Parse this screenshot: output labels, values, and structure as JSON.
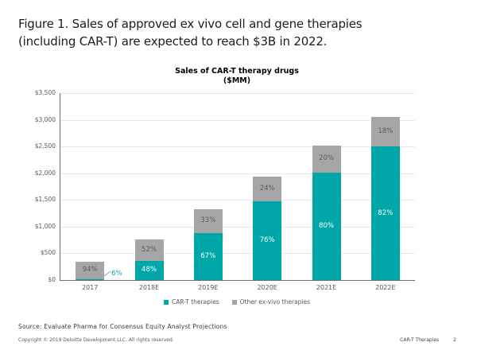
{
  "slide": {
    "title_line1": "Figure 1. Sales of approved ex vivo cell and gene therapies",
    "title_line2": "(including CAR-T) are expected to reach $3B in 2022.",
    "source_note": "Source: Evaluate Pharma for Consensus Equity Analyst Projections",
    "copyright": "Copyright © 2019 Deloitte Development LLC. All rights reserved.",
    "footer_label": "CAR-T Therapies",
    "page_number": "2"
  },
  "chart_data": {
    "type": "bar",
    "stacked": true,
    "title": "Sales of CAR-T therapy drugs",
    "subtitle": "($MM)",
    "categories": [
      "2017",
      "2018E",
      "2019E",
      "2020E",
      "2021E",
      "2022E"
    ],
    "series": [
      {
        "name": "CAR-T therapies",
        "color": "#00A7A9",
        "label_color": "#FFFFFF",
        "values": [
          20,
          365,
          885,
          1475,
          2015,
          2500
        ],
        "pct_labels": [
          "6%",
          "48%",
          "67%",
          "76%",
          "80%",
          "82%"
        ]
      },
      {
        "name": "Other ex-vivo therapies",
        "color": "#A6A6A8",
        "label_color": "#58595B",
        "values": [
          320,
          395,
          435,
          465,
          505,
          550
        ],
        "pct_labels": [
          "94%",
          "52%",
          "33%",
          "24%",
          "20%",
          "18%"
        ]
      }
    ],
    "totals_estimated": [
      340,
      760,
      1320,
      1940,
      2520,
      3050
    ],
    "ylim": [
      0,
      3500
    ],
    "ytick_step": 500,
    "ytick_labels": [
      "$0",
      "$500",
      "$1,000",
      "$1,500",
      "$2,000",
      "$2,500",
      "$3,000",
      "$3,500"
    ],
    "grid": true,
    "legend_position": "bottom",
    "axis_color": "#6D6E71",
    "gridline_color": "#E9E9EA",
    "tick_label_color": "#58595B",
    "leader_line_color": "#9B9B9D"
  }
}
